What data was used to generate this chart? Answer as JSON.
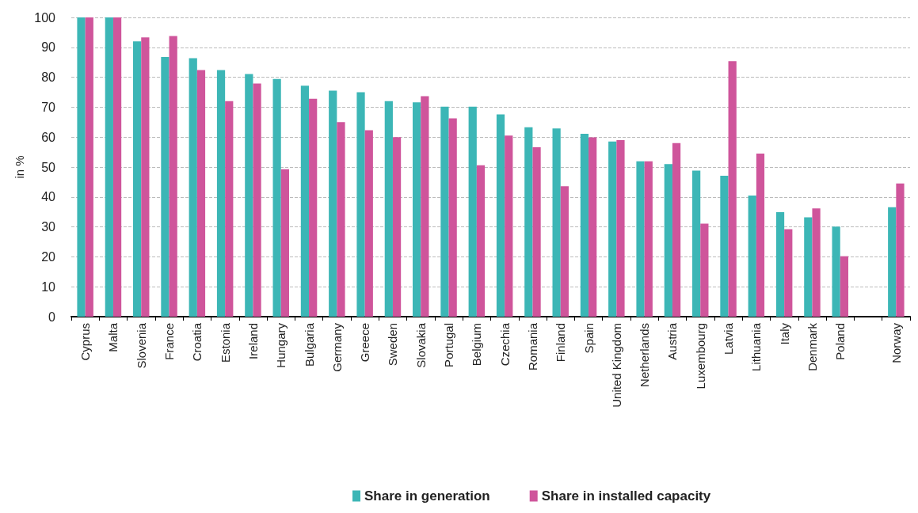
{
  "chart_data": {
    "type": "bar",
    "ylabel": "in %",
    "categories": [
      "Cyprus",
      "Malta",
      "Slovenia",
      "France",
      "Croatia",
      "Estonia",
      "Ireland",
      "Hungary",
      "Bulgaria",
      "Germany",
      "Greece",
      "Sweden",
      "Slovakia",
      "Portugal",
      "Belgium",
      "Czechia",
      "Romania",
      "Finland",
      "Spain",
      "United Kingdom",
      "Netherlands",
      "Austria",
      "Luxembourg",
      "Latvia",
      "Lithuania",
      "Italy",
      "Denmark",
      "Poland",
      null,
      "Norway"
    ],
    "series": [
      {
        "name": "Share in generation",
        "color": "#3cb6b6",
        "values": [
          100,
          100,
          92,
          86.8,
          86.4,
          82.4,
          81.1,
          79.4,
          77.2,
          75.5,
          75,
          72,
          71.6,
          70.2,
          70.2,
          67.6,
          63.3,
          62.9,
          61.1,
          58.5,
          51.9,
          51,
          48.8,
          47.1,
          40.5,
          34.9,
          33.2,
          30.1,
          null,
          36.6
        ]
      },
      {
        "name": "Share in installed capacity",
        "color": "#cf559b",
        "values": [
          100,
          100,
          93.3,
          93.8,
          82.4,
          72,
          77.9,
          49.3,
          72.8,
          65,
          62.3,
          60,
          73.7,
          66.3,
          50.6,
          60.5,
          56.6,
          43.6,
          59.9,
          59,
          51.9,
          58,
          31.1,
          85.4,
          54.5,
          29.2,
          36.2,
          20.2,
          null,
          44.5
        ]
      }
    ],
    "ylim": [
      0,
      100
    ],
    "yticks": [
      0,
      10,
      20,
      30,
      40,
      50,
      60,
      70,
      80,
      90,
      100
    ],
    "grid": "y",
    "legend": "bottom"
  }
}
